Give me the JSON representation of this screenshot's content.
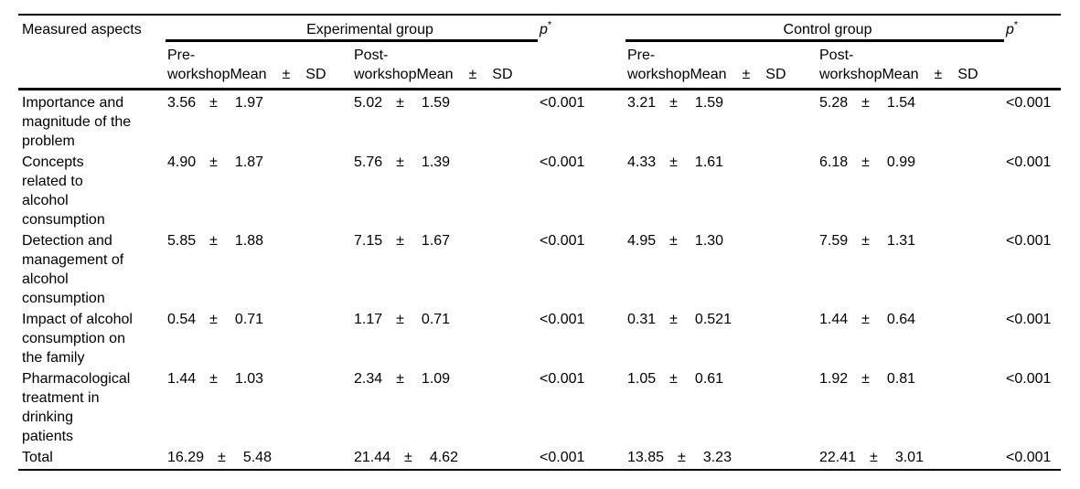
{
  "table": {
    "corner_header": "Measured aspects",
    "pm_symbol": "±",
    "groups": [
      {
        "label": "Experimental group"
      },
      {
        "label": "Control group"
      }
    ],
    "p_header": {
      "letter": "p",
      "star": "*"
    },
    "subheaders": {
      "pre_line1": "Pre-",
      "post_line1": "Post-",
      "line2_label": "workshopMean",
      "pm": "±",
      "sd": "SD"
    },
    "rows": [
      {
        "aspect": "Importance and\nmagnitude of the\nproblem",
        "exp_pre_mean": "3.56",
        "exp_pre_sd": "1.97",
        "exp_post_mean": "5.02",
        "exp_post_sd": "1.59",
        "exp_p": "<0.001",
        "ctrl_pre_mean": "3.21",
        "ctrl_pre_sd": "1.59",
        "ctrl_post_mean": "5.28",
        "ctrl_post_sd": "1.54",
        "ctrl_p": "<0.001"
      },
      {
        "aspect": "Concepts\nrelated to\nalcohol\nconsumption",
        "exp_pre_mean": "4.90",
        "exp_pre_sd": "1.87",
        "exp_post_mean": "5.76",
        "exp_post_sd": "1.39",
        "exp_p": "<0.001",
        "ctrl_pre_mean": "4.33",
        "ctrl_pre_sd": "1.61",
        "ctrl_post_mean": "6.18",
        "ctrl_post_sd": "0.99",
        "ctrl_p": "<0.001"
      },
      {
        "aspect": "Detection and\nmanagement of\nalcohol\nconsumption",
        "exp_pre_mean": "5.85",
        "exp_pre_sd": "1.88",
        "exp_post_mean": "7.15",
        "exp_post_sd": "1.67",
        "exp_p": "<0.001",
        "ctrl_pre_mean": "4.95",
        "ctrl_pre_sd": "1.30",
        "ctrl_post_mean": "7.59",
        "ctrl_post_sd": "1.31",
        "ctrl_p": "<0.001"
      },
      {
        "aspect": "Impact of alcohol\nconsumption on\nthe family",
        "exp_pre_mean": "0.54",
        "exp_pre_sd": "0.71",
        "exp_post_mean": "1.17",
        "exp_post_sd": "0.71",
        "exp_p": "<0.001",
        "ctrl_pre_mean": "0.31",
        "ctrl_pre_sd": "0.521",
        "ctrl_post_mean": "1.44",
        "ctrl_post_sd": "0.64",
        "ctrl_p": "<0.001"
      },
      {
        "aspect": "Pharmacological\ntreatment in\ndrinking\npatients",
        "exp_pre_mean": "1.44",
        "exp_pre_sd": "1.03",
        "exp_post_mean": "2.34",
        "exp_post_sd": "1.09",
        "exp_p": "<0.001",
        "ctrl_pre_mean": "1.05",
        "ctrl_pre_sd": "0.61",
        "ctrl_post_mean": "1.92",
        "ctrl_post_sd": "0.81",
        "ctrl_p": "<0.001"
      },
      {
        "aspect": "Total",
        "exp_pre_mean": "16.29",
        "exp_pre_sd": "5.48",
        "exp_post_mean": "21.44",
        "exp_post_sd": "4.62",
        "exp_p": "<0.001",
        "ctrl_pre_mean": "13.85",
        "ctrl_pre_sd": "3.23",
        "ctrl_post_mean": "22.41",
        "ctrl_post_sd": "3.01",
        "ctrl_p": "<0.001"
      }
    ]
  }
}
